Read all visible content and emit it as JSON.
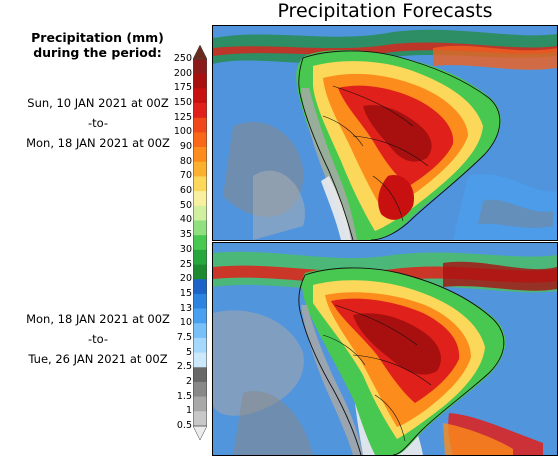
{
  "title": "Precipitation Forecasts",
  "legend": {
    "title_line1": "Precipitation (mm)",
    "title_line2": "during the period:",
    "ticks": [
      "250",
      "200",
      "175",
      "150",
      "125",
      "100",
      "90",
      "80",
      "70",
      "60",
      "50",
      "40",
      "35",
      "30",
      "25",
      "20",
      "15",
      "13",
      "10",
      "7.5",
      "5",
      "2.5",
      "2",
      "1.5",
      "1",
      "0.5"
    ],
    "colors": [
      "#6b2a1e",
      "#8b1a1a",
      "#a81010",
      "#c81010",
      "#e0201a",
      "#f04818",
      "#f86818",
      "#fc8c1c",
      "#fcb030",
      "#fcd85a",
      "#f8f0a0",
      "#d0f0a0",
      "#90e080",
      "#48c850",
      "#28a83c",
      "#1e8a30",
      "#1e64c8",
      "#2c84e0",
      "#4aa0f0",
      "#78c0f8",
      "#a4d8fc",
      "#cce8fc",
      "#686868",
      "#888888",
      "#a8a8a8",
      "#c8c8c8",
      "#ececec"
    ]
  },
  "period1": {
    "start": "Sun, 10 JAN 2021 at 00Z",
    "sep": "-to-",
    "end": "Mon, 18 JAN 2021 at 00Z"
  },
  "period2": {
    "start": "Mon, 18 JAN 2021 at 00Z",
    "sep": "-to-",
    "end": "Tue, 26 JAN 2021 at 00Z"
  }
}
